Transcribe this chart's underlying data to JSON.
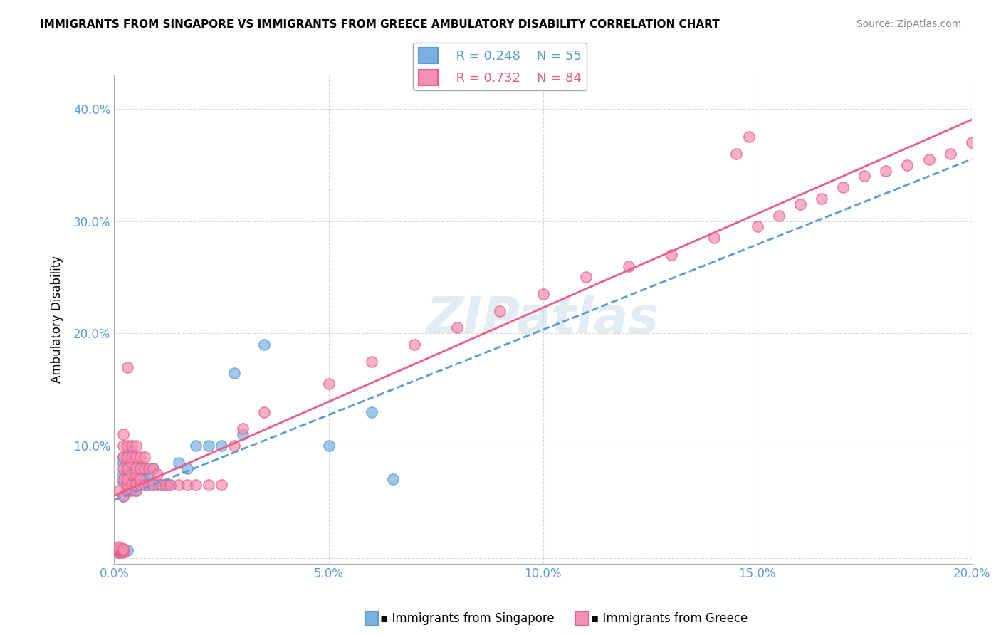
{
  "title": "IMMIGRANTS FROM SINGAPORE VS IMMIGRANTS FROM GREECE AMBULATORY DISABILITY CORRELATION CHART",
  "source": "Source: ZipAtlas.com",
  "xlabel_color": "#5b9bd5",
  "ylabel": "Ambulatory Disability",
  "xlim": [
    0.0,
    0.2
  ],
  "ylim": [
    -0.01,
    0.42
  ],
  "xticks": [
    0.0,
    0.05,
    0.1,
    0.15,
    0.2
  ],
  "yticks": [
    0.0,
    0.1,
    0.2,
    0.3,
    0.4
  ],
  "xtick_labels": [
    "0.0%",
    "5.0%",
    "10.0%",
    "15.0%",
    "20.0%"
  ],
  "ytick_labels": [
    "",
    "10.0%",
    "20.0%",
    "30.0%",
    "40.0%"
  ],
  "legend_R_singapore": "R = 0.248",
  "legend_N_singapore": "N = 55",
  "legend_R_greece": "R = 0.732",
  "legend_N_greece": "N = 84",
  "singapore_color": "#7ab0e0",
  "greece_color": "#f48fb1",
  "singapore_line_color": "#5b9bd5",
  "greece_line_color": "#e85d8a",
  "watermark": "ZIPatlas",
  "singapore_x": [
    0.001,
    0.001,
    0.001,
    0.001,
    0.001,
    0.001,
    0.001,
    0.002,
    0.002,
    0.002,
    0.002,
    0.002,
    0.002,
    0.002,
    0.002,
    0.003,
    0.003,
    0.003,
    0.003,
    0.003,
    0.003,
    0.004,
    0.004,
    0.004,
    0.004,
    0.005,
    0.005,
    0.005,
    0.005,
    0.005,
    0.006,
    0.006,
    0.006,
    0.007,
    0.007,
    0.007,
    0.008,
    0.008,
    0.009,
    0.009,
    0.01,
    0.011,
    0.012,
    0.013,
    0.015,
    0.017,
    0.019,
    0.022,
    0.025,
    0.028,
    0.03,
    0.035,
    0.05,
    0.06,
    0.065
  ],
  "singapore_y": [
    0.005,
    0.006,
    0.006,
    0.007,
    0.007,
    0.008,
    0.008,
    0.006,
    0.007,
    0.008,
    0.055,
    0.068,
    0.075,
    0.085,
    0.09,
    0.007,
    0.06,
    0.065,
    0.075,
    0.08,
    0.09,
    0.065,
    0.07,
    0.085,
    0.095,
    0.06,
    0.065,
    0.07,
    0.075,
    0.085,
    0.065,
    0.07,
    0.08,
    0.065,
    0.07,
    0.08,
    0.065,
    0.075,
    0.065,
    0.08,
    0.065,
    0.065,
    0.065,
    0.065,
    0.085,
    0.08,
    0.1,
    0.1,
    0.1,
    0.165,
    0.11,
    0.19,
    0.1,
    0.13,
    0.07
  ],
  "greece_x": [
    0.001,
    0.001,
    0.001,
    0.001,
    0.001,
    0.001,
    0.001,
    0.001,
    0.001,
    0.002,
    0.002,
    0.002,
    0.002,
    0.002,
    0.002,
    0.002,
    0.002,
    0.002,
    0.002,
    0.003,
    0.003,
    0.003,
    0.003,
    0.003,
    0.003,
    0.003,
    0.004,
    0.004,
    0.004,
    0.004,
    0.004,
    0.004,
    0.005,
    0.005,
    0.005,
    0.005,
    0.005,
    0.005,
    0.006,
    0.006,
    0.006,
    0.006,
    0.007,
    0.007,
    0.007,
    0.008,
    0.008,
    0.009,
    0.009,
    0.01,
    0.011,
    0.012,
    0.013,
    0.015,
    0.017,
    0.019,
    0.022,
    0.025,
    0.028,
    0.03,
    0.035,
    0.05,
    0.06,
    0.07,
    0.08,
    0.09,
    0.1,
    0.11,
    0.12,
    0.13,
    0.14,
    0.15,
    0.155,
    0.16,
    0.165,
    0.17,
    0.175,
    0.18,
    0.185,
    0.19,
    0.195,
    0.2,
    0.145,
    0.148
  ],
  "greece_y": [
    0.005,
    0.006,
    0.007,
    0.007,
    0.008,
    0.008,
    0.009,
    0.01,
    0.06,
    0.005,
    0.006,
    0.007,
    0.008,
    0.055,
    0.07,
    0.08,
    0.09,
    0.1,
    0.11,
    0.06,
    0.065,
    0.07,
    0.08,
    0.09,
    0.1,
    0.17,
    0.06,
    0.065,
    0.075,
    0.085,
    0.09,
    0.1,
    0.06,
    0.065,
    0.075,
    0.08,
    0.09,
    0.1,
    0.065,
    0.07,
    0.08,
    0.09,
    0.065,
    0.08,
    0.09,
    0.065,
    0.08,
    0.065,
    0.08,
    0.075,
    0.065,
    0.065,
    0.065,
    0.065,
    0.065,
    0.065,
    0.065,
    0.065,
    0.1,
    0.115,
    0.13,
    0.155,
    0.175,
    0.19,
    0.205,
    0.22,
    0.235,
    0.25,
    0.26,
    0.27,
    0.285,
    0.295,
    0.305,
    0.315,
    0.32,
    0.33,
    0.34,
    0.345,
    0.35,
    0.355,
    0.36,
    0.37,
    0.36,
    0.375
  ]
}
